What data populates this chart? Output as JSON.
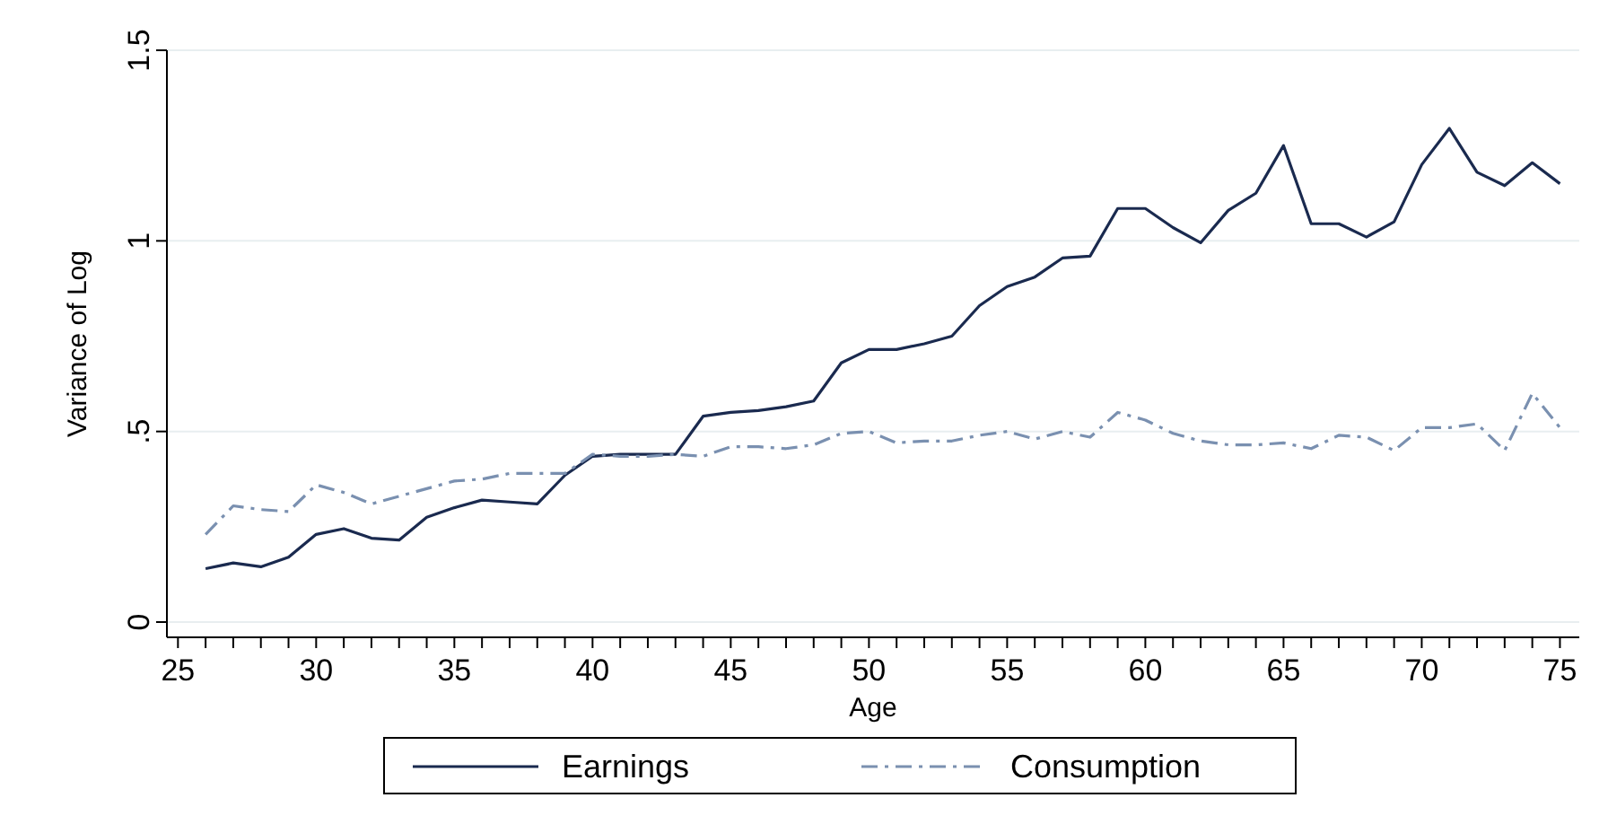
{
  "chart_data": {
    "type": "line",
    "xlabel": "Age",
    "ylabel": "Variance of Log",
    "x": [
      26,
      27,
      28,
      29,
      30,
      31,
      32,
      33,
      34,
      35,
      36,
      37,
      38,
      39,
      40,
      41,
      42,
      43,
      44,
      45,
      46,
      47,
      48,
      49,
      50,
      51,
      52,
      53,
      54,
      55,
      56,
      57,
      58,
      59,
      60,
      61,
      62,
      63,
      64,
      65,
      66,
      67,
      68,
      69,
      70,
      71,
      72,
      73,
      74,
      75
    ],
    "series": [
      {
        "name": "Earnings",
        "color": "#1a2a4f",
        "line_style": "solid",
        "values": [
          0.14,
          0.155,
          0.145,
          0.17,
          0.23,
          0.245,
          0.22,
          0.215,
          0.275,
          0.3,
          0.32,
          0.315,
          0.31,
          0.385,
          0.435,
          0.44,
          0.44,
          0.44,
          0.54,
          0.55,
          0.555,
          0.565,
          0.58,
          0.68,
          0.715,
          0.715,
          0.73,
          0.75,
          0.83,
          0.88,
          0.905,
          0.955,
          0.96,
          1.085,
          1.085,
          1.035,
          0.995,
          1.08,
          1.125,
          1.25,
          1.045,
          1.045,
          1.01,
          1.05,
          1.2,
          1.295,
          1.18,
          1.145,
          1.205,
          1.15
        ]
      },
      {
        "name": "Consumption",
        "color": "#7a90b0",
        "line_style": "dashed",
        "values": [
          0.23,
          0.305,
          0.295,
          0.29,
          0.36,
          0.34,
          0.31,
          0.33,
          0.35,
          0.37,
          0.375,
          0.39,
          0.39,
          0.39,
          0.44,
          0.435,
          0.435,
          0.44,
          0.435,
          0.46,
          0.46,
          0.455,
          0.465,
          0.495,
          0.5,
          0.47,
          0.475,
          0.475,
          0.49,
          0.5,
          0.48,
          0.5,
          0.485,
          0.55,
          0.53,
          0.495,
          0.475,
          0.465,
          0.465,
          0.47,
          0.455,
          0.49,
          0.485,
          0.45,
          0.51,
          0.51,
          0.52,
          0.45,
          0.6,
          0.51
        ]
      }
    ],
    "xlim": [
      24.6,
      75.7
    ],
    "xticks": [
      25,
      {
        "value": 26,
        "label": null
      },
      {
        "value": 27,
        "label": null
      },
      {
        "value": 28,
        "label": null
      },
      {
        "value": 29,
        "label": null
      },
      30,
      {
        "value": 31,
        "label": null
      },
      {
        "value": 32,
        "label": null
      },
      {
        "value": 33,
        "label": null
      },
      {
        "value": 34,
        "label": null
      },
      35,
      {
        "value": 36,
        "label": null
      },
      {
        "value": 37,
        "label": null
      },
      {
        "value": 38,
        "label": null
      },
      {
        "value": 39,
        "label": null
      },
      40,
      {
        "value": 41,
        "label": null
      },
      {
        "value": 42,
        "label": null
      },
      {
        "value": 43,
        "label": null
      },
      {
        "value": 44,
        "label": null
      },
      45,
      {
        "value": 46,
        "label": null
      },
      {
        "value": 47,
        "label": null
      },
      {
        "value": 48,
        "label": null
      },
      {
        "value": 49,
        "label": null
      },
      50,
      {
        "value": 51,
        "label": null
      },
      {
        "value": 52,
        "label": null
      },
      {
        "value": 53,
        "label": null
      },
      {
        "value": 54,
        "label": null
      },
      55,
      {
        "value": 56,
        "label": null
      },
      {
        "value": 57,
        "label": null
      },
      {
        "value": 58,
        "label": null
      },
      {
        "value": 59,
        "label": null
      },
      60,
      {
        "value": 61,
        "label": null
      },
      {
        "value": 62,
        "label": null
      },
      {
        "value": 63,
        "label": null
      },
      {
        "value": 64,
        "label": null
      },
      65,
      {
        "value": 66,
        "label": null
      },
      {
        "value": 67,
        "label": null
      },
      {
        "value": 68,
        "label": null
      },
      {
        "value": 69,
        "label": null
      },
      70,
      {
        "value": 71,
        "label": null
      },
      {
        "value": 72,
        "label": null
      },
      {
        "value": 73,
        "label": null
      },
      {
        "value": 74,
        "label": null
      },
      75
    ],
    "ylim": [
      -0.04,
      1.5
    ],
    "yticks": [
      0,
      {
        "value": 0.5,
        "label": ".5"
      },
      1,
      1.5
    ],
    "grid": "y",
    "legend": "bottom",
    "marker": "none"
  }
}
